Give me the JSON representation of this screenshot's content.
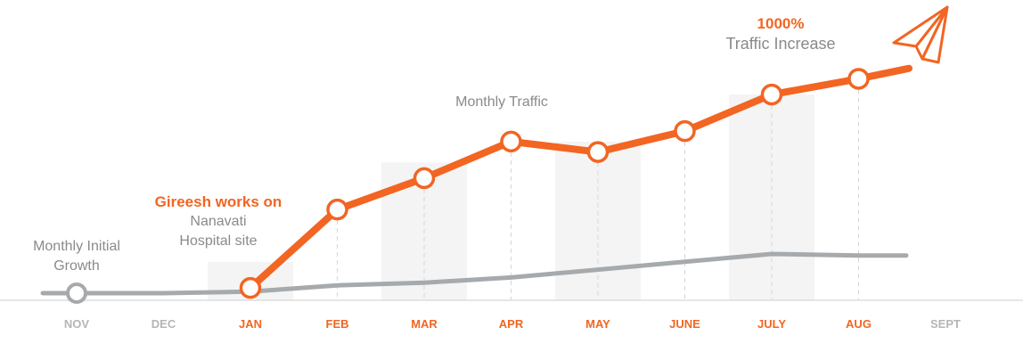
{
  "chart_data": {
    "type": "line",
    "categories": [
      "NOV",
      "DEC",
      "JAN",
      "FEB",
      "MAR",
      "APR",
      "MAY",
      "JUNE",
      "JULY",
      "AUG",
      "SEPT"
    ],
    "highlight_categories": [
      "JAN",
      "FEB",
      "MAR",
      "APR",
      "MAY",
      "JUNE",
      "JULY",
      "AUG"
    ],
    "series": [
      {
        "values": [
          null,
          null,
          1,
          16,
          22,
          29,
          27,
          31,
          38,
          41,
          43
        ],
        "color": "#f26522"
      },
      {
        "values": [
          0,
          0,
          0.3,
          1.5,
          2,
          3,
          4.5,
          6,
          7.5,
          7.2,
          7.2
        ],
        "color": "#a7aaad"
      }
    ],
    "bars": {
      "categories": [
        "JAN",
        "MAR",
        "MAY",
        "JULY"
      ],
      "values": [
        6,
        25,
        29,
        38
      ],
      "color": "#f4f4f4"
    },
    "ylim": [
      0,
      45
    ],
    "grid": false,
    "colors": {
      "accent": "#f26522",
      "muted_axis": "#b5b5b5",
      "baseline": "#dddddd"
    }
  },
  "annotations": {
    "initial_growth": {
      "line1": "Monthly Initial",
      "line2": "Growth"
    },
    "works_on": {
      "title": "Gireesh works on",
      "line1": "Nanavati",
      "line2": "Hospital site"
    },
    "monthly_traffic": "Monthly Traffic",
    "increase": {
      "pct": "1000%",
      "label": "Traffic Increase"
    }
  },
  "icons": {
    "end_marker": "paper-plane-icon"
  }
}
